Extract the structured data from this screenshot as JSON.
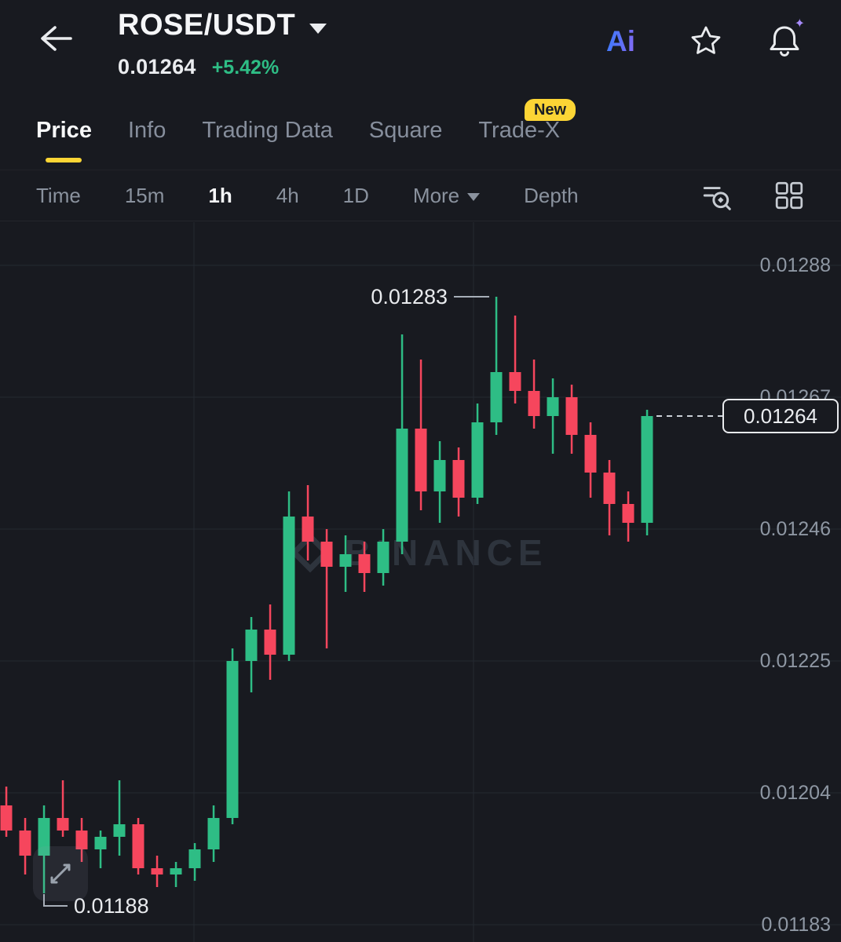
{
  "header": {
    "symbol": "ROSE/USDT",
    "last_price": "0.01264",
    "change_percent": "+5.42%",
    "ai_label": "Ai"
  },
  "tabs": {
    "items": [
      {
        "label": "Price",
        "active": true
      },
      {
        "label": "Info"
      },
      {
        "label": "Trading Data"
      },
      {
        "label": "Square"
      },
      {
        "label": "Trade-X",
        "badge": "New"
      }
    ]
  },
  "toolbar": {
    "items": [
      "Time",
      "15m",
      "1h",
      "4h",
      "1D"
    ],
    "active": "1h",
    "more_label": "More",
    "depth_label": "Depth"
  },
  "chart_data": {
    "type": "candlestick",
    "symbol": "ROSE/USDT",
    "interval": "1h",
    "watermark": "BINANCE",
    "up_color": "#2EBD85",
    "down_color": "#F6465D",
    "grid_color": "#242931",
    "accent_color": "#FCD535",
    "y_axis": {
      "gridline_prices": [
        0.01288,
        0.01267,
        0.01246,
        0.01225,
        0.01204,
        0.01183
      ],
      "labels": [
        "0.01288",
        "0.01267",
        "0.01246",
        "0.01225",
        "0.01204",
        "0.01183"
      ]
    },
    "high_annotation": {
      "price": 0.01283,
      "label": "0.01283"
    },
    "low_annotation": {
      "price": 0.01188,
      "label": "0.01188"
    },
    "last_price": {
      "value": 0.01264,
      "label": "0.01264"
    },
    "candles": [
      [
        0.01202,
        0.01205,
        0.01197,
        0.01198
      ],
      [
        0.01198,
        0.012,
        0.01191,
        0.01194
      ],
      [
        0.01194,
        0.01202,
        0.01188,
        0.012
      ],
      [
        0.012,
        0.01206,
        0.01197,
        0.01198
      ],
      [
        0.01198,
        0.012,
        0.01193,
        0.01195
      ],
      [
        0.01195,
        0.01198,
        0.01192,
        0.01197
      ],
      [
        0.01197,
        0.01206,
        0.01194,
        0.01199
      ],
      [
        0.01199,
        0.012,
        0.01191,
        0.01192
      ],
      [
        0.01192,
        0.01194,
        0.01189,
        0.01191
      ],
      [
        0.01191,
        0.01193,
        0.01189,
        0.01192
      ],
      [
        0.01192,
        0.01196,
        0.0119,
        0.01195
      ],
      [
        0.01195,
        0.01202,
        0.01193,
        0.012
      ],
      [
        0.012,
        0.01227,
        0.01199,
        0.01225
      ],
      [
        0.01225,
        0.01232,
        0.0122,
        0.0123
      ],
      [
        0.0123,
        0.01234,
        0.01222,
        0.01226
      ],
      [
        0.01226,
        0.01252,
        0.01225,
        0.01248
      ],
      [
        0.01248,
        0.01253,
        0.01241,
        0.01244
      ],
      [
        0.01244,
        0.01246,
        0.01227,
        0.0124
      ],
      [
        0.0124,
        0.01245,
        0.01236,
        0.01242
      ],
      [
        0.01242,
        0.01244,
        0.01236,
        0.01239
      ],
      [
        0.01239,
        0.01246,
        0.01237,
        0.01244
      ],
      [
        0.01244,
        0.01277,
        0.01242,
        0.01262
      ],
      [
        0.01262,
        0.01273,
        0.01249,
        0.01252
      ],
      [
        0.01252,
        0.0126,
        0.01247,
        0.01257
      ],
      [
        0.01257,
        0.01259,
        0.01248,
        0.01251
      ],
      [
        0.01251,
        0.01266,
        0.0125,
        0.01263
      ],
      [
        0.01263,
        0.01283,
        0.01261,
        0.01271
      ],
      [
        0.01271,
        0.0128,
        0.01266,
        0.01268
      ],
      [
        0.01268,
        0.01273,
        0.01262,
        0.01264
      ],
      [
        0.01264,
        0.0127,
        0.01258,
        0.01267
      ],
      [
        0.01267,
        0.01269,
        0.01258,
        0.01261
      ],
      [
        0.01261,
        0.01263,
        0.01251,
        0.01255
      ],
      [
        0.01255,
        0.01257,
        0.01245,
        0.0125
      ],
      [
        0.0125,
        0.01252,
        0.01244,
        0.01247
      ],
      [
        0.01247,
        0.01265,
        0.01245,
        0.01264
      ]
    ]
  }
}
